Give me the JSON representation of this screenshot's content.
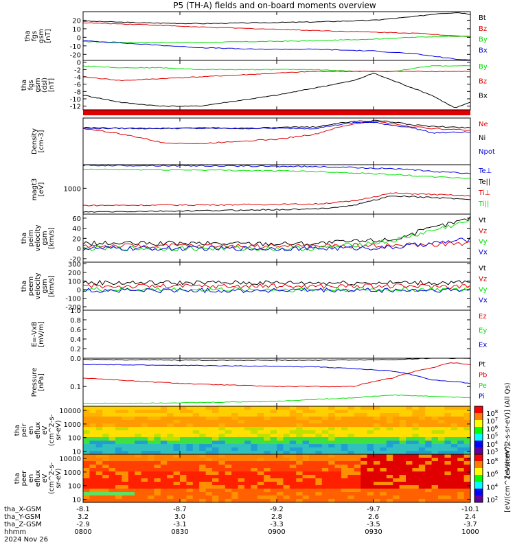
{
  "title": "P5 (TH-A) fields and on-board moments overview",
  "colors": {
    "black": "#000000",
    "red": "#e00000",
    "green": "#00e000",
    "blue": "#0000e0",
    "axis": "#000000"
  },
  "chart_data": [
    {
      "type": "line",
      "id": "fgs_gsm",
      "ylabel": [
        "tha",
        "fgs",
        "gsm",
        "[nT]"
      ],
      "yticks": [
        "20",
        "10",
        "0",
        "-10",
        "-20"
      ],
      "ytick_values": [
        20,
        10,
        0,
        -10,
        -20
      ],
      "ylim": [
        -27,
        30
      ],
      "series": [
        {
          "name": "Bt",
          "color": "#000000",
          "x": [
            0,
            0.15,
            0.3,
            0.45,
            0.6,
            0.75,
            0.85,
            0.92,
            0.97,
            1
          ],
          "values": [
            19,
            17,
            16,
            17,
            18,
            20,
            24,
            28,
            29,
            27
          ]
        },
        {
          "name": "Bz",
          "color": "#e00000",
          "x": [
            0,
            0.15,
            0.3,
            0.45,
            0.6,
            0.75,
            0.85,
            0.92,
            1
          ],
          "values": [
            17,
            15,
            12,
            10,
            8,
            6,
            5,
            3,
            1
          ]
        },
        {
          "name": "By",
          "color": "#00e000",
          "x": [
            0,
            0.15,
            0.3,
            0.45,
            0.6,
            0.75,
            0.85,
            0.92,
            1
          ],
          "values": [
            -5,
            -6,
            -6,
            -5,
            -4,
            -2,
            0,
            1,
            1
          ]
        },
        {
          "name": "Bx",
          "color": "#0000e0",
          "x": [
            0,
            0.15,
            0.3,
            0.45,
            0.6,
            0.75,
            0.85,
            0.92,
            0.97,
            1
          ],
          "values": [
            -4,
            -8,
            -12,
            -14,
            -14,
            -16,
            -19,
            -23,
            -26,
            -26
          ]
        }
      ]
    },
    {
      "type": "line",
      "id": "fgs_dsl",
      "ylabel": [
        "tha",
        "fgs",
        "gsm",
        "(dsl)",
        "[nT]"
      ],
      "yticks": [
        "0",
        "-2",
        "-4",
        "-6",
        "-8",
        "-10",
        "-12"
      ],
      "ytick_values": [
        0,
        -2,
        -4,
        -6,
        -8,
        -10,
        -12
      ],
      "ylim": [
        -13,
        0.5
      ],
      "series": [
        {
          "name": "By",
          "color": "#00e000",
          "x": [
            0,
            0.1,
            0.2,
            0.3,
            0.4,
            0.5,
            0.6,
            0.7,
            0.8,
            0.9,
            1
          ],
          "values": [
            -1,
            -1.5,
            -1.5,
            -2,
            -2,
            -2,
            -2,
            -2.5,
            -2.5,
            -1,
            -1
          ]
        },
        {
          "name": "Bz",
          "color": "#e00000",
          "x": [
            0,
            0.1,
            0.2,
            0.3,
            0.4,
            0.5,
            0.6,
            0.7,
            0.8,
            0.9,
            1
          ],
          "values": [
            -4,
            -5,
            -4.5,
            -4,
            -3.5,
            -3,
            -2.5,
            -2.5,
            -2.5,
            -2.5,
            -2.5
          ]
        },
        {
          "name": "Bx",
          "color": "#000000",
          "x": [
            0,
            0.1,
            0.2,
            0.3,
            0.4,
            0.5,
            0.6,
            0.7,
            0.75,
            0.8,
            0.9,
            0.96,
            1
          ],
          "values": [
            -9,
            -11,
            -12,
            -12,
            -10.5,
            -9,
            -7,
            -5,
            -3,
            -5,
            -9,
            -12.5,
            -11
          ]
        }
      ]
    },
    {
      "type": "line",
      "id": "density",
      "ylabel": [
        "Density",
        "[cm-3]"
      ],
      "log": true,
      "ylim": [
        0.1,
        1.0
      ],
      "yticks": [],
      "ytick_values": [],
      "series": [
        {
          "name": "Ne",
          "color": "#e00000",
          "x": [
            0,
            0.1,
            0.2,
            0.3,
            0.4,
            0.5,
            0.6,
            0.65,
            0.7,
            0.75,
            0.8,
            0.85,
            0.9,
            1
          ],
          "values": [
            0.6,
            0.45,
            0.3,
            0.28,
            0.32,
            0.35,
            0.45,
            0.6,
            0.75,
            0.85,
            0.75,
            0.65,
            0.6,
            0.55
          ]
        },
        {
          "name": "Ni",
          "color": "#000000",
          "x": [
            0,
            0.1,
            0.2,
            0.3,
            0.4,
            0.5,
            0.6,
            0.65,
            0.7,
            0.75,
            0.8,
            0.85,
            0.9,
            1
          ],
          "values": [
            0.62,
            0.6,
            0.6,
            0.62,
            0.6,
            0.62,
            0.65,
            0.75,
            0.85,
            0.88,
            0.82,
            0.72,
            0.66,
            0.62
          ]
        },
        {
          "name": "Npot",
          "color": "#0000e0",
          "x": [
            0,
            0.3,
            0.6,
            0.65,
            0.7,
            0.75,
            0.8,
            0.85,
            0.9,
            1
          ],
          "values": [
            0.6,
            0.6,
            0.6,
            0.7,
            0.8,
            0.8,
            0.7,
            0.62,
            0.48,
            0.5
          ]
        }
      ]
    },
    {
      "type": "line",
      "id": "temperature",
      "ylabel": [
        "magt3",
        "[eV]"
      ],
      "log": true,
      "ylim": [
        300,
        3000
      ],
      "yticks": [
        "1000"
      ],
      "ytick_values": [
        1000
      ],
      "series": [
        {
          "name": "Te⊥",
          "color": "#0000e0",
          "x": [
            0,
            0.3,
            0.6,
            0.8,
            0.9,
            1
          ],
          "values": [
            2900,
            2850,
            2750,
            2500,
            2200,
            2000
          ]
        },
        {
          "name": "Te||",
          "color": "#000000",
          "x": [
            0,
            0.3,
            0.6,
            0.7,
            0.8,
            0.9,
            1
          ],
          "values": [
            330,
            350,
            380,
            450,
            700,
            650,
            600
          ]
        },
        {
          "name": "Ti⊥",
          "color": "#e00000",
          "x": [
            0,
            0.3,
            0.6,
            0.7,
            0.8,
            0.9,
            1
          ],
          "values": [
            450,
            460,
            480,
            550,
            800,
            750,
            700
          ]
        },
        {
          "name": "Ti||",
          "color": "#00e000",
          "x": [
            0,
            0.3,
            0.6,
            0.8,
            0.9,
            1
          ],
          "values": [
            2400,
            2350,
            2200,
            1900,
            1700,
            1600
          ]
        }
      ]
    },
    {
      "type": "line",
      "id": "peim_velocity",
      "ylabel": [
        "tha",
        "peim",
        "velocity",
        "gsm",
        "[km/s]"
      ],
      "yticks": [
        "60",
        "40",
        "20",
        "0",
        "-20"
      ],
      "ytick_values": [
        60,
        40,
        20,
        0,
        -20
      ],
      "ylim": [
        -27,
        68
      ],
      "series": [
        {
          "name": "Vt",
          "color": "#000000",
          "x": [
            0,
            0.3,
            0.6,
            0.8,
            0.9,
            1
          ],
          "values": [
            10,
            10,
            10,
            18,
            40,
            60
          ]
        },
        {
          "name": "Vz",
          "color": "#e00000",
          "x": [
            0,
            0.3,
            0.6,
            0.8,
            0.9,
            1
          ],
          "values": [
            5,
            5,
            5,
            6,
            8,
            10
          ]
        },
        {
          "name": "Vy",
          "color": "#00e000",
          "x": [
            0,
            0.3,
            0.6,
            0.8,
            0.9,
            1
          ],
          "values": [
            0,
            0,
            0,
            15,
            35,
            55
          ]
        },
        {
          "name": "Vx",
          "color": "#0000e0",
          "x": [
            0,
            0.3,
            0.6,
            0.8,
            0.9,
            1
          ],
          "values": [
            0,
            0,
            0,
            2,
            10,
            18
          ]
        }
      ]
    },
    {
      "type": "line",
      "id": "peem_velocity",
      "ylabel": [
        "tha",
        "peem",
        "velocity",
        "gsm",
        "[km/s]"
      ],
      "yticks": [
        "300",
        "200",
        "100",
        "0",
        "-100",
        "-200"
      ],
      "ytick_values": [
        300,
        200,
        100,
        0,
        -100,
        -200
      ],
      "ylim": [
        -240,
        320
      ],
      "series": [
        {
          "name": "Vt",
          "color": "#000000",
          "x": [
            0,
            1
          ],
          "values": [
            80,
            80
          ]
        },
        {
          "name": "Vz",
          "color": "#e00000",
          "x": [
            0,
            1
          ],
          "values": [
            40,
            40
          ]
        },
        {
          "name": "Vy",
          "color": "#00e000",
          "x": [
            0,
            1
          ],
          "values": [
            0,
            0
          ]
        },
        {
          "name": "Vx",
          "color": "#0000e0",
          "x": [
            0,
            1
          ],
          "values": [
            -10,
            -10
          ]
        }
      ]
    },
    {
      "type": "line",
      "id": "efield",
      "ylabel": [
        "E=-VxB",
        "[mV/m]"
      ],
      "yticks": [
        "1.0",
        "0.8",
        "0.6",
        "0.4",
        "0.2",
        "0.0"
      ],
      "ytick_values": [
        1,
        0.8,
        0.6,
        0.4,
        0.2,
        0
      ],
      "ylim": [
        0,
        1
      ],
      "series": [
        {
          "name": "Ez",
          "color": "#e00000",
          "x": [],
          "values": []
        },
        {
          "name": "Ey",
          "color": "#00e000",
          "x": [],
          "values": []
        },
        {
          "name": "Ex",
          "color": "#0000e0",
          "x": [],
          "values": []
        }
      ]
    },
    {
      "type": "line",
      "id": "pressure",
      "ylabel": [
        "Pressure",
        "[nPa]"
      ],
      "log": true,
      "ylim": [
        0.02,
        1.0
      ],
      "yticks": [
        "0.1"
      ],
      "ytick_values": [
        0.1
      ],
      "series": [
        {
          "name": "Pt",
          "color": "#000000",
          "x": [
            0,
            0.3,
            0.6,
            0.8,
            0.9,
            1
          ],
          "values": [
            0.9,
            0.85,
            0.85,
            0.9,
            1.0,
            1.0
          ]
        },
        {
          "name": "Pb",
          "color": "#e00000",
          "x": [
            0,
            0.15,
            0.3,
            0.5,
            0.7,
            0.8,
            0.9,
            0.95,
            1
          ],
          "values": [
            0.2,
            0.15,
            0.12,
            0.1,
            0.1,
            0.2,
            0.45,
            0.7,
            0.6
          ]
        },
        {
          "name": "Pe",
          "color": "#00e000",
          "x": [
            0,
            0.3,
            0.5,
            0.7,
            0.8,
            0.9,
            1
          ],
          "values": [
            0.025,
            0.027,
            0.03,
            0.04,
            0.05,
            0.045,
            0.04
          ]
        },
        {
          "name": "Pi",
          "color": "#0000e0",
          "x": [
            0,
            0.3,
            0.6,
            0.8,
            0.9,
            1
          ],
          "values": [
            0.6,
            0.55,
            0.5,
            0.35,
            0.17,
            0.13
          ]
        }
      ]
    },
    {
      "type": "heatmap",
      "id": "peir_eflux",
      "ylabel": [
        "tha",
        "peir",
        "en",
        "eflux",
        "eV",
        "(cm^2-s-",
        "sr-eV)"
      ],
      "yticks": [
        "10000",
        "1000",
        "100",
        "10"
      ],
      "ytick_values": [
        10000,
        1000,
        100,
        10
      ],
      "log": true,
      "ylim": [
        6,
        20000
      ],
      "colorbar_label": "[eV/(cm^2-s-sr-eV)] (All Qs)",
      "colorbar_ticks": [
        "10^8",
        "10^7",
        "10^6",
        "10^5",
        "10^4",
        "10^3"
      ]
    },
    {
      "type": "heatmap",
      "id": "peer_eflux",
      "ylabel": [
        "tha",
        "peer",
        "en",
        "eflux",
        "eV",
        "(cm^2-s-",
        "sr-eV)"
      ],
      "yticks": [
        "10000",
        "1000",
        "100",
        "10"
      ],
      "ytick_values": [
        10000,
        1000,
        100,
        10
      ],
      "log": true,
      "ylim": [
        6,
        20000
      ],
      "colorbar_label": "[eV/(cm^2-s-sr-eV)]",
      "colorbar_ticks": [
        "10^8",
        "10^6",
        "10^4",
        "10^2"
      ]
    }
  ],
  "footer": {
    "labels": [
      "tha_X-GSM",
      "tha_Y-GSM",
      "tha_Z-GSM",
      "hhmm",
      "2024 Nov 26"
    ],
    "x_gsm": [
      "-8.1",
      "-8.7",
      "-9.2",
      "-9.7",
      "-10.1"
    ],
    "y_gsm": [
      "3.2",
      "3.0",
      "2.8",
      "2.6",
      "2.4"
    ],
    "z_gsm": [
      "-2.9",
      "-3.1",
      "-3.3",
      "-3.5",
      "-3.7"
    ],
    "hhmm": [
      "0800",
      "0830",
      "0900",
      "0930",
      "1000"
    ]
  }
}
